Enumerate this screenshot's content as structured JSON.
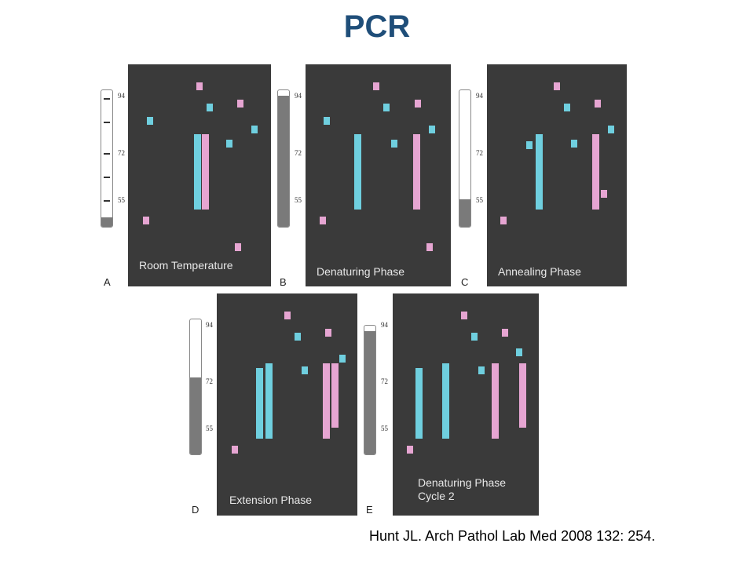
{
  "title": "PCR",
  "citation": "Hunt JL. Arch Pathol Lab Med 2008 132: 254.",
  "temperature_scale": [
    "94",
    "72",
    "55"
  ],
  "colors": {
    "primer_pink": "#e6a5d2",
    "primer_blue": "#6fcfdf",
    "panel_bg": "#3a3a3a",
    "title": "#1f4e79"
  },
  "panels": [
    {
      "letter": "A",
      "label_line1": "Room Temperature",
      "label_line2": "",
      "thermometer_level": 0.07
    },
    {
      "letter": "B",
      "label_line1": "Denaturing Phase",
      "label_line2": "",
      "thermometer_level": 0.96
    },
    {
      "letter": "C",
      "label_line1": "Annealing Phase",
      "label_line2": "",
      "thermometer_level": 0.2
    },
    {
      "letter": "D",
      "label_line1": "Extension Phase",
      "label_line2": "",
      "thermometer_level": 0.57
    },
    {
      "letter": "E",
      "label_line1": "Denaturing Phase",
      "label_line2": "Cycle 2",
      "thermometer_level": 0.96
    }
  ]
}
